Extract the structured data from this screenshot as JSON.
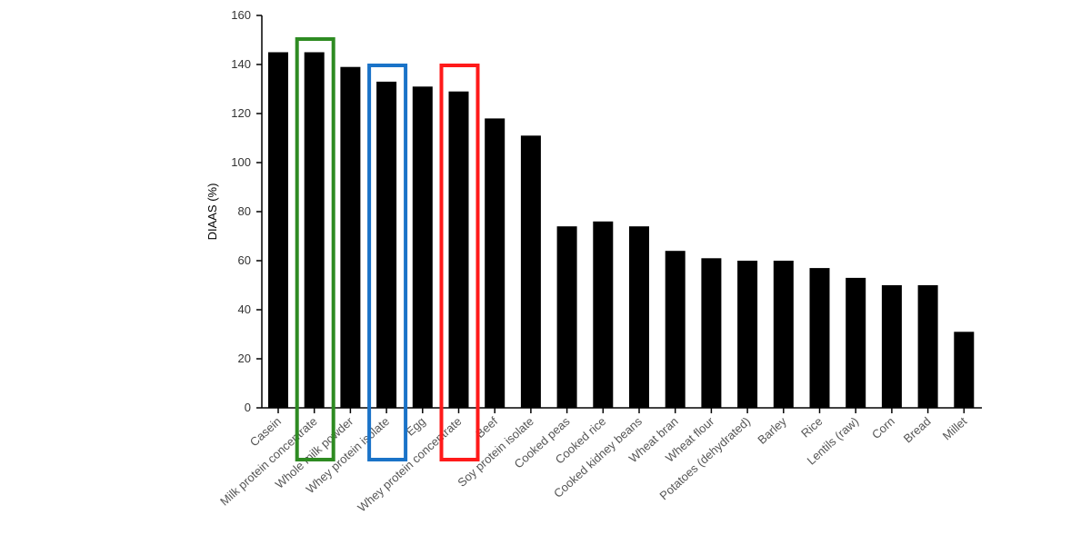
{
  "chart_data": {
    "type": "bar",
    "title": "",
    "xlabel": "",
    "ylabel": "DIAAS (%)",
    "ylim": [
      0,
      160
    ],
    "yticks": [
      0,
      20,
      40,
      60,
      80,
      100,
      120,
      140,
      160
    ],
    "grid": false,
    "legend": null,
    "bar_color": "#000000",
    "categories": [
      "Casein",
      "Milk protein concentrate",
      "Whole milk powder",
      "Whey protein isolate",
      "Egg",
      "Whey protein concentrate",
      "Beef",
      "Soy protein isolate",
      "Cooked peas",
      "Cooked rice",
      "Cooked kidney beans",
      "Wheat bran",
      "Wheat flour",
      "Potatoes (dehydrated)",
      "Barley",
      "Rice",
      "Lentils (raw)",
      "Corn",
      "Bread",
      "Millet"
    ],
    "values": [
      145,
      145,
      139,
      133,
      131,
      129,
      118,
      111,
      74,
      76,
      74,
      64,
      61,
      60,
      60,
      57,
      53,
      50,
      50,
      31
    ],
    "annotations": [
      {
        "type": "highlight-box",
        "category": "Milk protein concentrate",
        "color": "#2e8b22"
      },
      {
        "type": "highlight-box",
        "category": "Whey protein isolate",
        "color": "#1a73c8"
      },
      {
        "type": "highlight-box",
        "category": "Whey protein concentrate",
        "color": "#ff1a1a"
      }
    ]
  }
}
